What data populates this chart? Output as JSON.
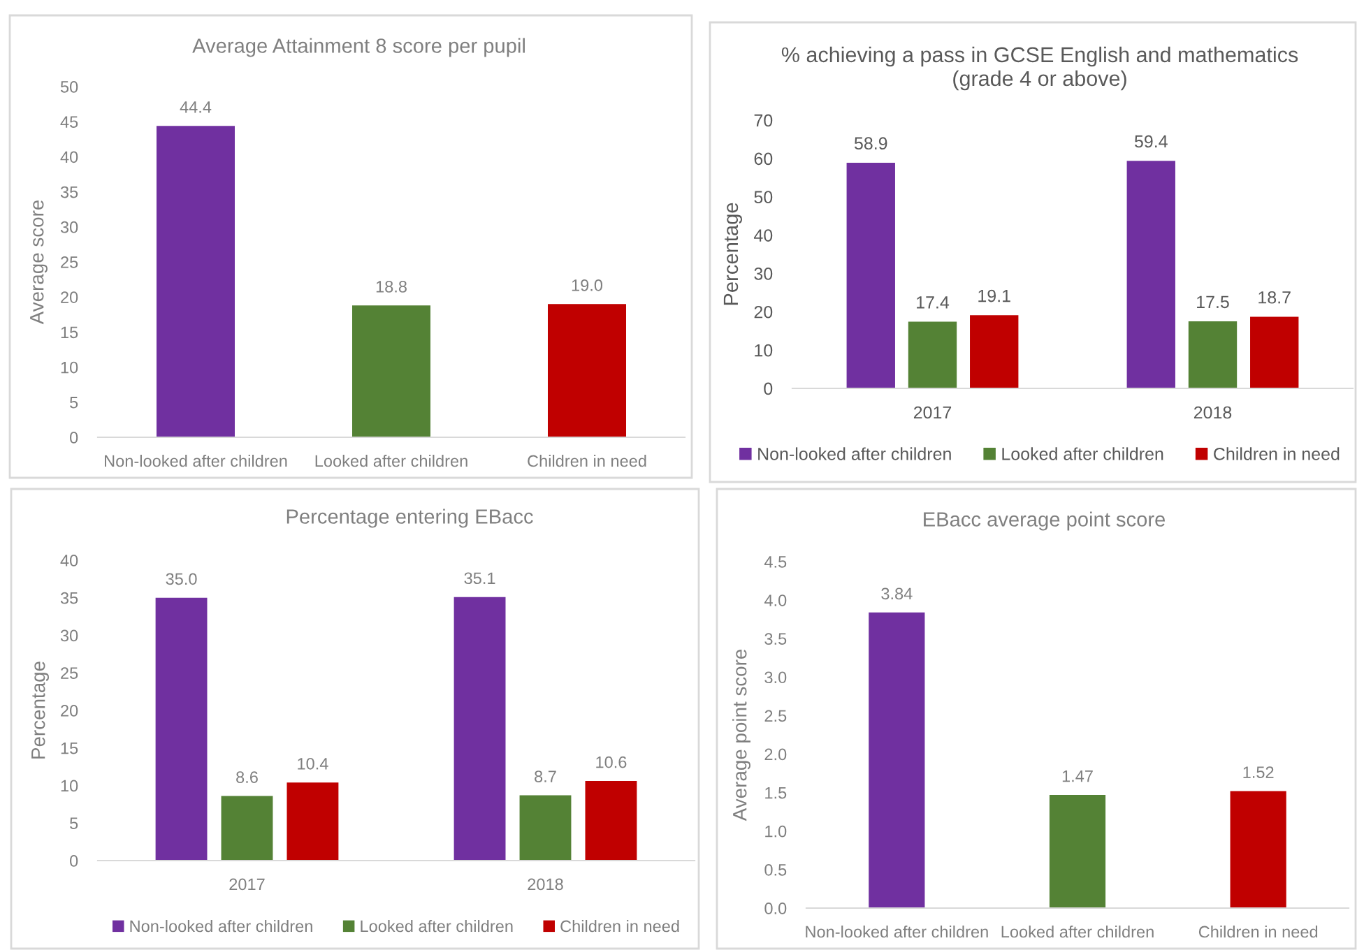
{
  "chart_data": [
    {
      "type": "bar",
      "title": "Average Attainment 8 score per pupil",
      "ylabel": "Average score",
      "categories": [
        "Non-looked after children",
        "Looked after children",
        "Children in need"
      ],
      "values": [
        44.4,
        18.8,
        19.0
      ],
      "colors": [
        "#7030a0",
        "#548235",
        "#c00000"
      ],
      "value_labels": [
        "44.4",
        "18.8",
        "19.0"
      ],
      "ylim": [
        0,
        50
      ],
      "yticks": [
        0,
        5,
        10,
        15,
        20,
        25,
        30,
        35,
        40,
        45,
        50
      ]
    },
    {
      "type": "bar",
      "title": "% achieving a pass in GCSE English and mathematics\n(grade 4 or above)",
      "ylabel": "Percentage",
      "categories": [
        "2017",
        "2018"
      ],
      "series": [
        {
          "name": "Non-looked after children",
          "color": "#7030a0",
          "values": [
            58.9,
            59.4
          ],
          "value_labels": [
            "58.9",
            "59.4"
          ]
        },
        {
          "name": "Looked after children",
          "color": "#548235",
          "values": [
            17.4,
            17.5
          ],
          "value_labels": [
            "17.4",
            "17.5"
          ]
        },
        {
          "name": "Children in need",
          "color": "#c00000",
          "values": [
            19.1,
            18.7
          ],
          "value_labels": [
            "19.1",
            "18.7"
          ]
        }
      ],
      "ylim": [
        0,
        70
      ],
      "yticks": [
        0,
        10,
        20,
        30,
        40,
        50,
        60,
        70
      ],
      "legend": "bottom"
    },
    {
      "type": "bar",
      "title": "Percentage entering EBacc",
      "ylabel": "Percentage",
      "categories": [
        "2017",
        "2018"
      ],
      "series": [
        {
          "name": "Non-looked after children",
          "color": "#7030a0",
          "values": [
            35.0,
            35.1
          ],
          "value_labels": [
            "35.0",
            "35.1"
          ]
        },
        {
          "name": "Looked after children",
          "color": "#548235",
          "values": [
            8.6,
            8.7
          ],
          "value_labels": [
            "8.6",
            "8.7"
          ]
        },
        {
          "name": "Children in need",
          "color": "#c00000",
          "values": [
            10.4,
            10.6
          ],
          "value_labels": [
            "10.4",
            "10.6"
          ]
        }
      ],
      "ylim": [
        0,
        40
      ],
      "yticks": [
        0,
        5,
        10,
        15,
        20,
        25,
        30,
        35,
        40
      ],
      "legend": "bottom"
    },
    {
      "type": "bar",
      "title": "EBacc average point score",
      "ylabel": "Average point score",
      "categories": [
        "Non-looked after children",
        "Looked after children",
        "Children in need"
      ],
      "values": [
        3.84,
        1.47,
        1.52
      ],
      "colors": [
        "#7030a0",
        "#548235",
        "#c00000"
      ],
      "value_labels": [
        "3.84",
        "1.47",
        "1.52"
      ],
      "ylim": [
        0,
        4.5
      ],
      "yticks": [
        {
          "value": 0,
          "label": "0.0"
        },
        {
          "value": 0.5,
          "label": "0.5"
        },
        {
          "value": 1,
          "label": "1.0"
        },
        {
          "value": 1.5,
          "label": "1.5"
        },
        {
          "value": 2,
          "label": "2.0"
        },
        {
          "value": 2.5,
          "label": "2.5"
        },
        {
          "value": 3,
          "label": "3.0"
        },
        {
          "value": 3.5,
          "label": "3.5"
        },
        {
          "value": 4,
          "label": "4.0"
        },
        {
          "value": 4.5,
          "label": "4.5"
        }
      ]
    }
  ]
}
